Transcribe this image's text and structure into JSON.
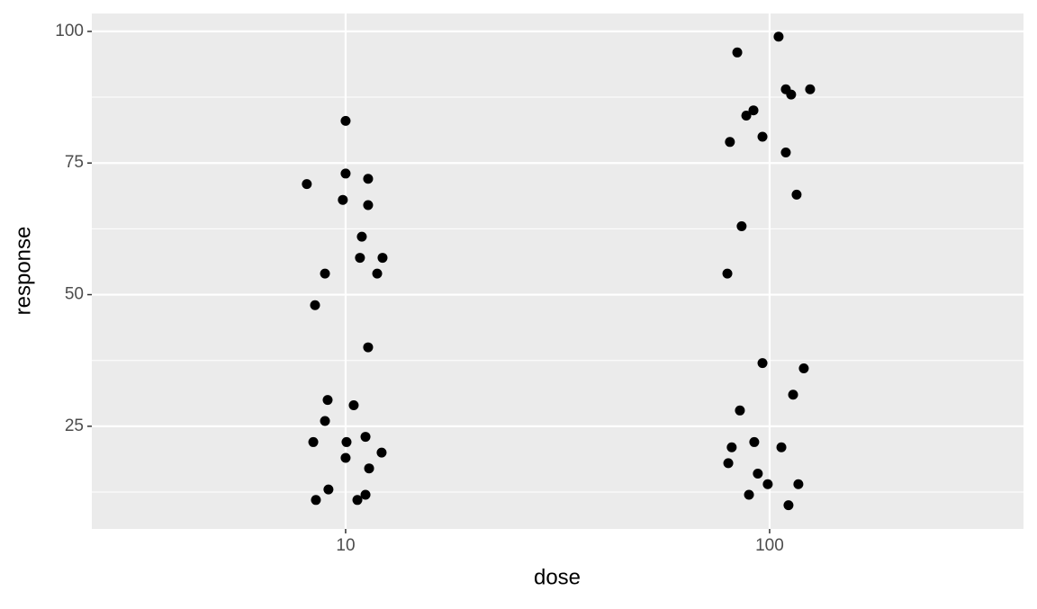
{
  "chart_data": {
    "type": "scatter",
    "x_label": "dose",
    "y_label": "response",
    "xscale": "log",
    "xlim": [
      2.52,
      397
    ],
    "ylim": [
      5.5,
      103.4
    ],
    "xticks": [
      10,
      100
    ],
    "yticks": [
      25,
      50,
      75,
      100
    ],
    "y_minor_grid": [
      12.5,
      37.5,
      62.5,
      87.5
    ],
    "grid": true,
    "color": "#000000",
    "x": [
      10.0,
      8.1,
      10.0,
      11.3,
      9.85,
      11.3,
      10.92,
      10.81,
      12.22,
      8.94,
      11.87,
      8.47,
      11.3,
      9.07,
      10.45,
      8.94,
      8.39,
      10.05,
      11.14,
      12.16,
      10.0,
      11.36,
      9.11,
      8.51,
      10.66,
      11.14,
      105.0,
      83.9,
      109.2,
      124.6,
      112.4,
      91.6,
      88.1,
      96.2,
      80.6,
      109.2,
      115.8,
      85.9,
      79.5,
      96.2,
      120.4,
      113.6,
      85.1,
      81.4,
      92.0,
      106.6,
      79.9,
      93.8,
      99.0,
      116.9,
      89.4,
      110.8
    ],
    "values": [
      83,
      71,
      73,
      72,
      68,
      67,
      61,
      57,
      57,
      54,
      54,
      48,
      40,
      30,
      29,
      26,
      22,
      22,
      23,
      20,
      19,
      17,
      13,
      11,
      11,
      12,
      99,
      96,
      89,
      89,
      88,
      85,
      84,
      80,
      79,
      77,
      69,
      63,
      54,
      37,
      36,
      31,
      28,
      21,
      22,
      21,
      18,
      16,
      14,
      14,
      12,
      10
    ]
  }
}
